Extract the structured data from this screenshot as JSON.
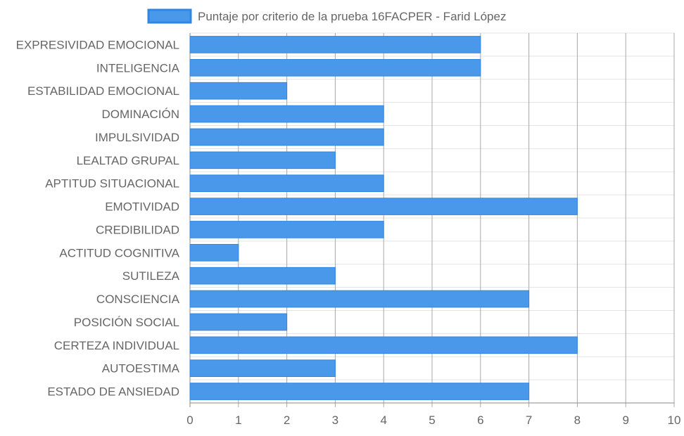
{
  "chart_data": {
    "type": "bar",
    "orientation": "horizontal",
    "categories": [
      "EXPRESIVIDAD EMOCIONAL",
      "INTELIGENCIA",
      "ESTABILIDAD EMOCIONAL",
      "DOMINACIÓN",
      "IMPULSIVIDAD",
      "LEALTAD GRUPAL",
      "APTITUD SITUACIONAL",
      "EMOTIVIDAD",
      "CREDIBILIDAD",
      "ACTITUD COGNITIVA",
      "SUTILEZA",
      "CONSCIENCIA",
      "POSICIÓN SOCIAL",
      "CERTEZA INDIVIDUAL",
      "AUTOESTIMA",
      "ESTADO DE ANSIEDAD"
    ],
    "series": [
      {
        "name": "Puntaje por criterio de la prueba 16FACPER - Farid López",
        "values": [
          6,
          6,
          2,
          4,
          4,
          3,
          4,
          8,
          4,
          1,
          3,
          7,
          2,
          8,
          3,
          7
        ],
        "color": "#4a98ea",
        "border_color": "#2f86e3"
      }
    ],
    "x_ticks": [
      "0",
      "1",
      "2",
      "3",
      "4",
      "5",
      "6",
      "7",
      "8",
      "9",
      "10"
    ],
    "xlim": [
      0,
      10
    ],
    "grid": true,
    "legend": "top-center",
    "colors": {
      "grid": "#e3e3e3",
      "grid_major": "#a8a8a8",
      "axis": "#8a8a8a",
      "label": "#666666"
    }
  }
}
